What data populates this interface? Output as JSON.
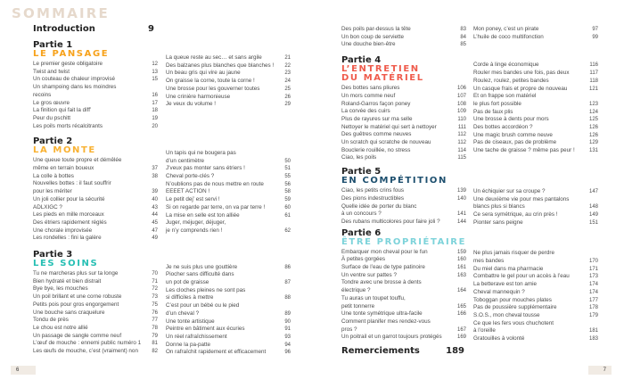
{
  "title": "SOMMAIRE",
  "intro": {
    "label": "Introduction",
    "page": "9"
  },
  "thanks": {
    "label": "Remerciements",
    "page": "189"
  },
  "page_left": "6",
  "page_right": "7",
  "parts": [
    {
      "label": "Partie 1",
      "title": "LE PANSAGE",
      "color": "#f7a21b",
      "entries": [
        [
          "Le premier geste obligatoire",
          "12"
        ],
        [
          "Twist and twist",
          "13"
        ],
        [
          "Un couteau de chaleur improvisé",
          "15"
        ],
        [
          "Un shampoing dans les moindres\nrecoins",
          "16"
        ],
        [
          "Le gros œuvre",
          "17"
        ],
        [
          "La finition qui fait la diff’",
          "18"
        ],
        [
          "Peur du pschitt",
          "19"
        ],
        [
          "Les poils morts récalcitrants",
          "20"
        ]
      ],
      "continued": [
        [
          "La queue reste au sec… et sans argile",
          "21"
        ],
        [
          "Des balzanes plus blanches que blanches !",
          "22"
        ],
        [
          "Un beau gris qui vire au jaune",
          "23"
        ],
        [
          "On graisse la corne, toute la corne !",
          "24"
        ],
        [
          "Une brosse pour les gouverner toutes",
          "25"
        ],
        [
          "Une crinière harmonieuse",
          "26"
        ],
        [
          "Je veux du volume !",
          "29"
        ]
      ]
    },
    {
      "label": "Partie 2",
      "title": "LA MONTE",
      "color": "#f9b233",
      "entries": [
        [
          "Une queue toute propre et démêlée\nmême en terrain boueux",
          "37"
        ],
        [
          "La colle à bottes",
          "38"
        ],
        [
          "Nouvelles bottes : il faut souffrir\npour les mériter",
          "39"
        ],
        [
          "Un joli collier pour la sécurité",
          "40"
        ],
        [
          "ADLXIGC ?",
          "43"
        ],
        [
          "Les pieds en mille morceaux",
          "44"
        ],
        [
          "Des étriers rapidement réglés",
          "45"
        ],
        [
          "Une chorale improvisée",
          "47"
        ],
        [
          "Les rondelles : fini la galère",
          "49"
        ]
      ],
      "continued": [
        [
          "Un tapis qui ne bougera pas\nd’un centimètre",
          "50"
        ],
        [
          "J’veux pas monter sans étriers !",
          "51"
        ],
        [
          "Cheval porte-clés ?",
          "55"
        ],
        [
          "N’oublions pas de nous mettre en route",
          "56"
        ],
        [
          "EEEET ACTION !",
          "58"
        ],
        [
          "Le petit dej’ est servi !",
          "59"
        ],
        [
          "Si on regarde par terre, on va par terre !",
          "60"
        ],
        [
          "La mise en selle est ton alliée",
          "61"
        ],
        [
          "Juger, méjuger, déjuger,\nje n’y comprends rien !",
          "62"
        ]
      ]
    },
    {
      "label": "Partie 3",
      "title": "LES SOINS",
      "color": "#27bfb4",
      "entries": [
        [
          "Tu ne marcheras plus sur ta longe",
          "70"
        ],
        [
          "Bien hydraté et bien distrait",
          "71"
        ],
        [
          "Bye bye, les mouches",
          "72"
        ],
        [
          "Un poil brillant et une corne robuste",
          "73"
        ],
        [
          "Petits pois pour gros engorgement",
          "75"
        ],
        [
          "Une bouche sans craquelure",
          "76"
        ],
        [
          "Tondu de près",
          "77"
        ],
        [
          "Le chou est notre allié",
          "78"
        ],
        [
          "Un passage de sangle comme neuf",
          "79"
        ],
        [
          "L’œuf de mouche : ennemi public numéro 1",
          "81"
        ],
        [
          "Les œufs de mouche, c’est (vraiment) non",
          "82"
        ]
      ],
      "continued": [
        [
          "Je ne suis plus une gouttière",
          "86"
        ],
        [
          "Piocher sans difficulté dans\nun pot de graisse",
          "87"
        ],
        [
          "Les cloches pleines ne sont pas\nsi difficiles à mettre",
          "88"
        ],
        [
          "C’est pour un bébé ou le pied\nd’un cheval ?",
          "89"
        ],
        [
          "Une tonte artistique",
          "90"
        ],
        [
          "Peintre en bâtiment aux écuries",
          "91"
        ],
        [
          "Un réel rafraîchissement",
          "93"
        ],
        [
          "Donne la pa-patte",
          "94"
        ],
        [
          "On rafraîchit rapidement et efficacement",
          "96"
        ]
      ],
      "continued2": [
        [
          "Des poils par-dessus la tête",
          "83"
        ],
        [
          "Un bon coup de serviette",
          "84"
        ],
        [
          "Une douche bien-être",
          "85"
        ],
        [
          "Mon poney, c’est un pirate",
          "97"
        ],
        [
          "L’huile de coco multifonction",
          "99"
        ]
      ]
    },
    {
      "label": "Partie 4",
      "title": "L’ENTRETIEN\nDU MATÉRIEL",
      "color": "#ef5b4c",
      "entries": [
        [
          "Des bottes sans pliures",
          "106"
        ],
        [
          "Un mors comme neuf",
          "107"
        ],
        [
          "Roland-Garros façon poney",
          "108"
        ],
        [
          "La corvée des cuirs",
          "109"
        ],
        [
          "Plus de rayures sur ma selle",
          "110"
        ],
        [
          "Nettoyer le matériel qui sert à nettoyer",
          "111"
        ],
        [
          "Des guêtres comme neuves",
          "112"
        ],
        [
          "Un scratch qui scratche de nouveau",
          "112"
        ],
        [
          "Bouclerie rouillée, no stress",
          "114"
        ],
        [
          "Ciao, les poils",
          "115"
        ]
      ],
      "continued": [
        [
          "Corde à linge économique",
          "116"
        ],
        [
          "Rouler mes bandes une fois, pas deux",
          "117"
        ],
        [
          "Roulez, roulez, petites bandes",
          "118"
        ],
        [
          "Un casque frais et propre de nouveau",
          "121"
        ],
        [
          "Et on frappe son matériel\nle plus fort possible",
          "123"
        ],
        [
          "Pas de faux plis",
          "124"
        ],
        [
          "Une brosse à dents pour mors",
          "125"
        ],
        [
          "Des bottes accordéon ?",
          "126"
        ],
        [
          "Une magic brush comme neuve",
          "126"
        ],
        [
          "Pas de ciseaux, pas de problème",
          "129"
        ],
        [
          "Une tache de graisse ? même pas peur !",
          "131"
        ]
      ]
    },
    {
      "label": "Partie 5",
      "title": "EN COMPÉTITION",
      "color": "#1d4f6e",
      "entries": [
        [
          "Ciao, les petits crins fous",
          "139"
        ],
        [
          "Des pions indestructibles",
          "140"
        ],
        [
          "Quelle idée de porter du blanc\nà un concours ?",
          "141"
        ],
        [
          "Des rubans multicolores pour faire joli ?",
          "144"
        ]
      ],
      "continued": [
        [
          "Un échiquier sur sa croupe ?",
          "147"
        ],
        [
          "Une deuxième vie pour mes pantalons\nblancs plus si blancs",
          "148"
        ],
        [
          "Ce sera symétrique, au crin près !",
          "149"
        ],
        [
          "Pionter sans peigne",
          "151"
        ]
      ]
    },
    {
      "label": "Partie 6",
      "title": "ÊTRE PROPRIÉTAIRE",
      "color": "#7dd3da",
      "entries": [
        [
          "Embarquer mon cheval pour le fun",
          "159"
        ],
        [
          "À petites gorgées",
          "160"
        ],
        [
          "Surface de l’eau de type patinoire",
          "161"
        ],
        [
          "Un ventre sur pattes ?",
          "163"
        ],
        [
          "Tondre avec une brosse à dents\nélectrique ?",
          "164"
        ],
        [
          "Tu auras un toupet touffu,\npetit tonnerre",
          "165"
        ],
        [
          "Une tonte symétrique ultra-facile",
          "166"
        ],
        [
          "Comment planifer mes rendez-vous\npros ?",
          "167"
        ],
        [
          "Un poitrail et un garrot toujours protégés",
          "169"
        ]
      ],
      "continued": [
        [
          "Ne plus jamais risquer de perdre\nmes bandes",
          "170"
        ],
        [
          "Du miel dans ma pharmacie",
          "171"
        ],
        [
          "Combattre le gel pour un accès à l’eau",
          "173"
        ],
        [
          "La betterave est ton amie",
          "174"
        ],
        [
          "Cheval mannequin ?",
          "174"
        ],
        [
          "Toboggan pour mouches plates",
          "177"
        ],
        [
          "Pas de poussière supplémentaire",
          "178"
        ],
        [
          "S.O.S., mon cheval tousse",
          "179"
        ],
        [
          "Ce que les fers vous chuchotent\nà l’oreille",
          "181"
        ],
        [
          "Gratouilles à volonté",
          "183"
        ]
      ]
    }
  ]
}
